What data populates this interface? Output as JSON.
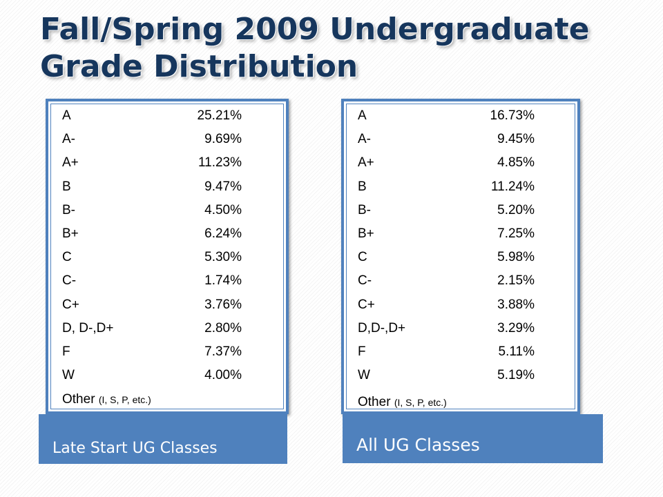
{
  "title": "Fall/Spring 2009 Undergraduate Grade Distribution",
  "panels": [
    {
      "label": "Late Start UG Classes",
      "rows": [
        {
          "grade": "A",
          "pct": "25.21%"
        },
        {
          "grade": "A-",
          "pct": "9.69%"
        },
        {
          "grade": "A+",
          "pct": "11.23%"
        },
        {
          "grade": "B",
          "pct": "9.47%"
        },
        {
          "grade": "B-",
          "pct": "4.50%"
        },
        {
          "grade": "B+",
          "pct": "6.24%"
        },
        {
          "grade": "C",
          "pct": "5.30%"
        },
        {
          "grade": "C-",
          "pct": "1.74%"
        },
        {
          "grade": "C+",
          "pct": "3.76%"
        },
        {
          "grade": "D, D-,D+",
          "pct": "2.80%"
        },
        {
          "grade": "F",
          "pct": "7.37%"
        },
        {
          "grade": "W",
          "pct": "4.00%"
        }
      ],
      "other": {
        "label": "Other",
        "note": "(I, S, P, etc.)"
      }
    },
    {
      "label": "All UG Classes",
      "rows": [
        {
          "grade": "A",
          "pct": "16.73%"
        },
        {
          "grade": "A-",
          "pct": "9.45%"
        },
        {
          "grade": "A+",
          "pct": "4.85%"
        },
        {
          "grade": "B",
          "pct": "11.24%"
        },
        {
          "grade": "B-",
          "pct": "5.20%"
        },
        {
          "grade": "B+",
          "pct": "7.25%"
        },
        {
          "grade": "C",
          "pct": "5.98%"
        },
        {
          "grade": "C-",
          "pct": "2.15%"
        },
        {
          "grade": "C+",
          "pct": "3.88%"
        },
        {
          "grade": "D,D-,D+",
          "pct": "3.29%"
        },
        {
          "grade": "F",
          "pct": "5.11%"
        },
        {
          "grade": "W",
          "pct": "5.19%"
        }
      ],
      "other": {
        "label": "Other",
        "note": "(I, S, P, etc.)"
      }
    }
  ],
  "colors": {
    "title": "#16365d",
    "accent": "#4f81bd"
  }
}
